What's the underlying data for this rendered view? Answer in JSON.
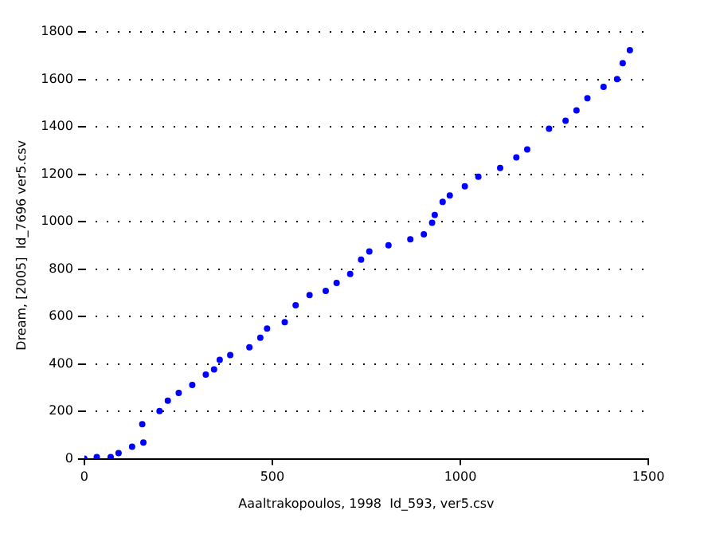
{
  "chart_data": {
    "type": "scatter",
    "xlabel": "Aaaltrakopoulos, 1998  Id_593, ver5.csv",
    "ylabel": "Dream, [2005]  Id_7696 ver5.csv",
    "xlim": [
      0,
      1500
    ],
    "xticks": [
      0,
      500,
      1000,
      1500
    ],
    "ylim": [
      0,
      1800
    ],
    "yticks": [
      0,
      200,
      400,
      600,
      800,
      1000,
      1200,
      1400,
      1600,
      1800
    ],
    "grid": "y",
    "marker": "circle",
    "series": [
      {
        "color": "#0000ff",
        "x": [
          0,
          33,
          70,
          91,
          127,
          154,
          157,
          200,
          222,
          251,
          287,
          323,
          345,
          360,
          388,
          439,
          468,
          486,
          533,
          562,
          599,
          642,
          671,
          707,
          736,
          758,
          809,
          867,
          903,
          925,
          932,
          953,
          972,
          1012,
          1048,
          1106,
          1149,
          1178,
          1236,
          1280,
          1309,
          1338,
          1381,
          1417,
          1432,
          1451
        ],
        "values": [
          0,
          7,
          7,
          24,
          51,
          146,
          68,
          201,
          245,
          278,
          311,
          355,
          377,
          417,
          437,
          470,
          510,
          549,
          576,
          647,
          690,
          708,
          741,
          779,
          840,
          874,
          900,
          925,
          946,
          995,
          1028,
          1083,
          1110,
          1149,
          1189,
          1226,
          1271,
          1304,
          1392,
          1425,
          1469,
          1520,
          1568,
          1601,
          1668,
          1723
        ]
      }
    ]
  }
}
